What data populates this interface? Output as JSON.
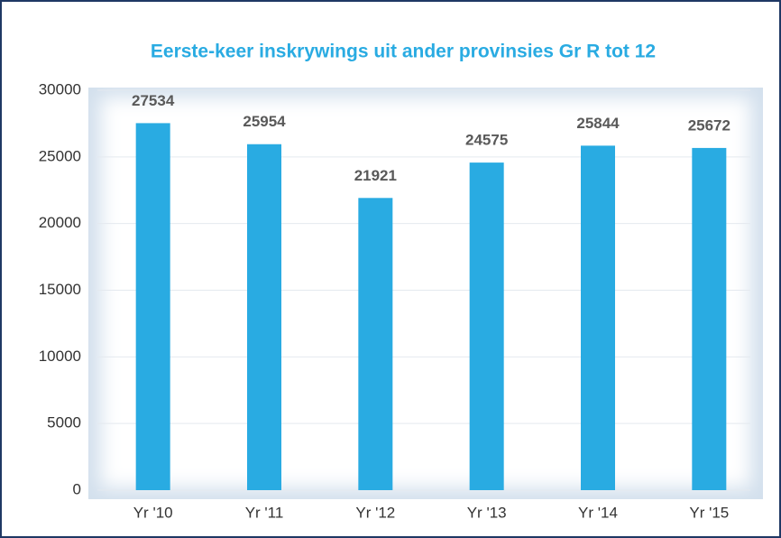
{
  "chart_data": {
    "type": "bar",
    "title": "Eerste-keer inskrywings uit ander provinsies Gr R tot 12",
    "categories": [
      "Yr '10",
      "Yr '11",
      "Yr '12",
      "Yr '13",
      "Yr '14",
      "Yr '15"
    ],
    "values": [
      27534,
      25954,
      21921,
      24575,
      25844,
      25672
    ],
    "color": "#29abe2",
    "ylim": [
      0,
      30000
    ],
    "yticks": [
      0,
      5000,
      10000,
      15000,
      20000,
      25000,
      30000
    ],
    "grid": true
  }
}
